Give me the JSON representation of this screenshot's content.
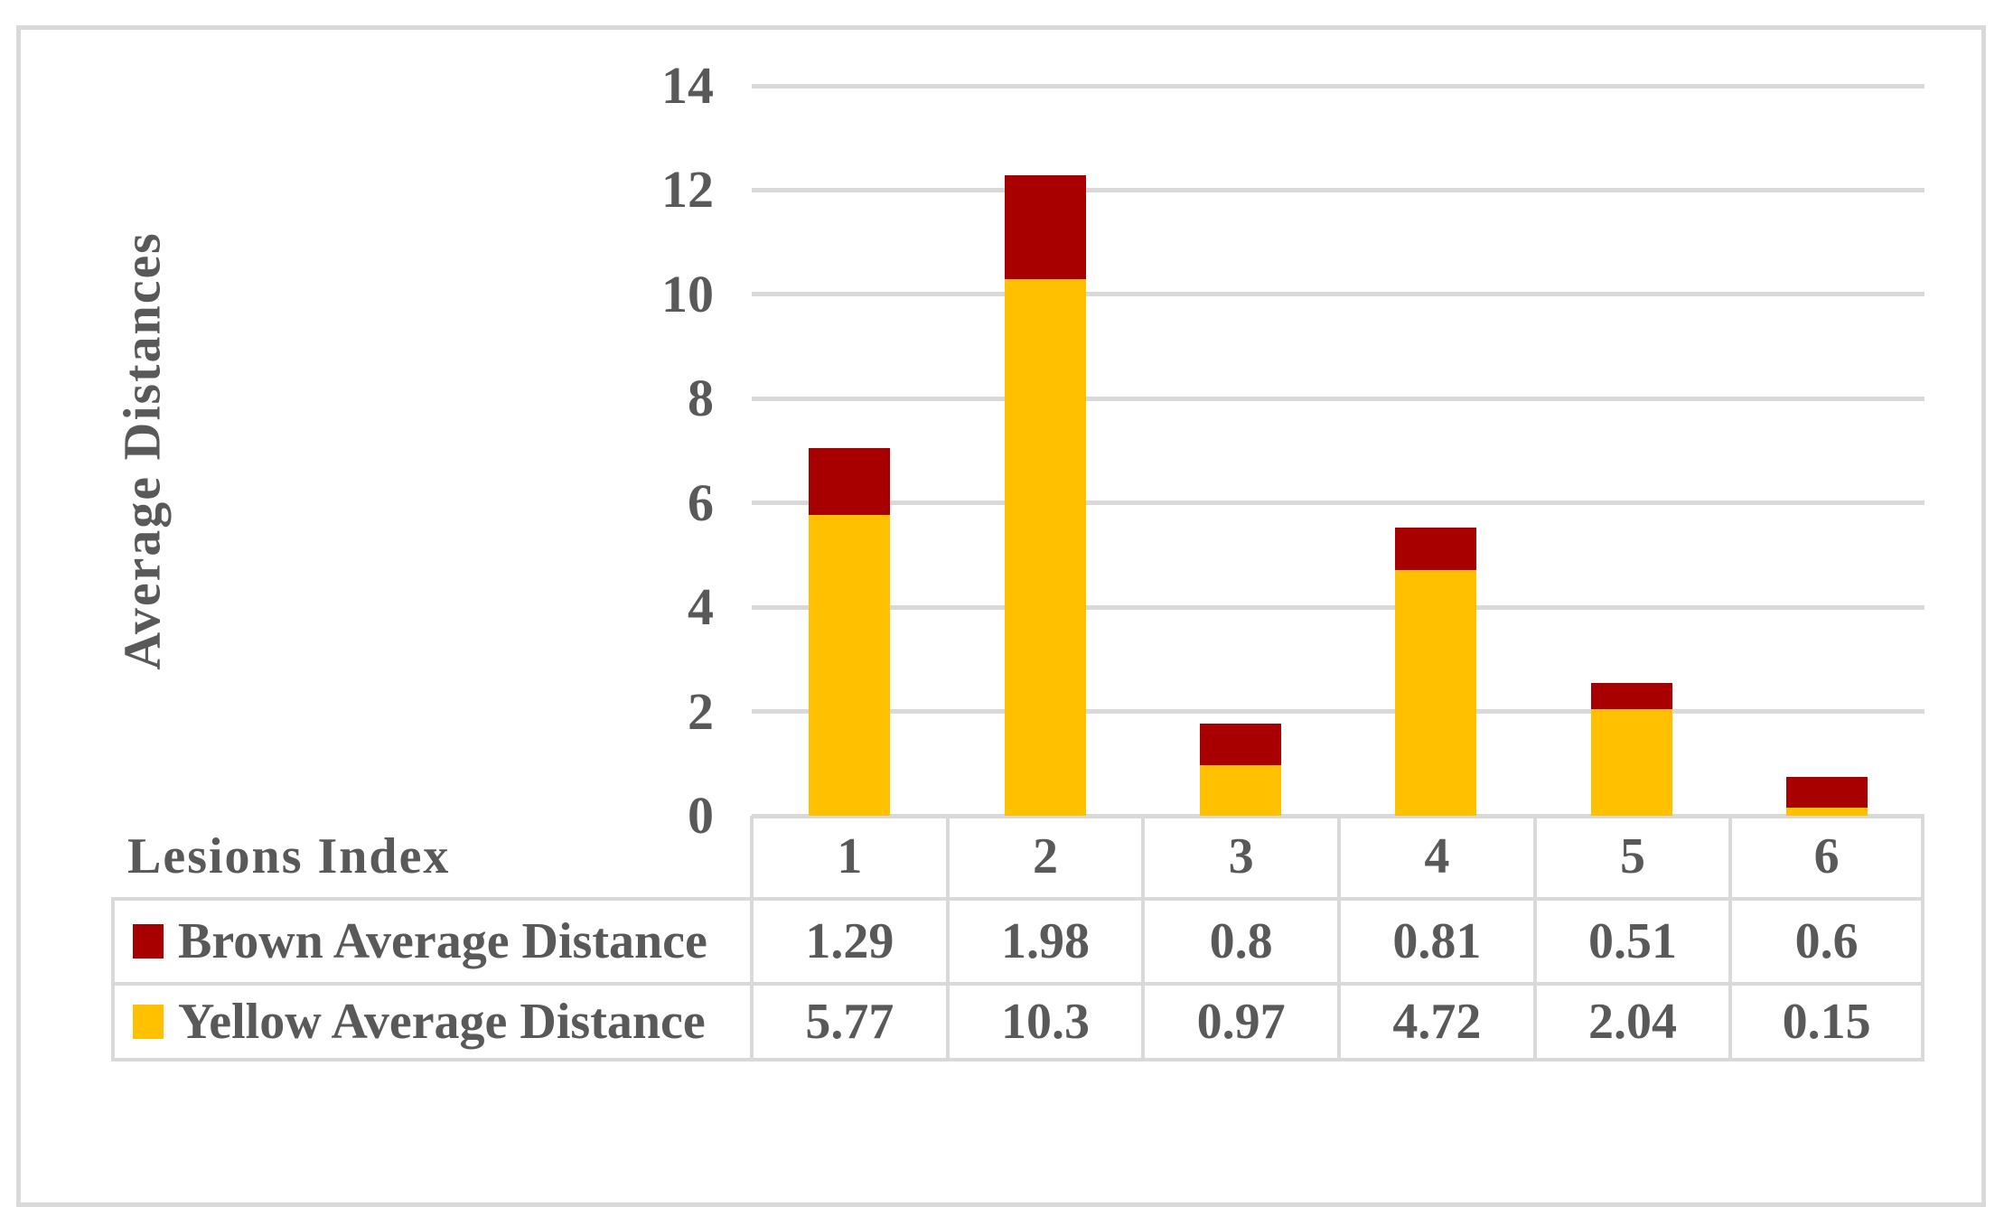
{
  "figure": {
    "background_color": "#ffffff",
    "frame_border_color": "#d9d9d9",
    "text_color": "#595959"
  },
  "chart_data": {
    "type": "bar",
    "stacked": true,
    "title": "",
    "xlabel": "Lesions Index",
    "ylabel": "Average Distances",
    "categories": [
      "1",
      "2",
      "3",
      "4",
      "5",
      "6"
    ],
    "series": [
      {
        "name": "Brown Average Distance",
        "color": "#a80000",
        "values": [
          1.29,
          1.98,
          0.8,
          0.81,
          0.51,
          0.6
        ]
      },
      {
        "name": "Yellow Average Distance",
        "color": "#ffc000",
        "values": [
          5.77,
          10.3,
          0.97,
          4.72,
          2.04,
          0.15
        ]
      }
    ],
    "stack_order_bottom_to_top": [
      "Yellow Average Distance",
      "Brown Average Distance"
    ],
    "ylim": [
      0,
      14
    ],
    "ytick_step": 2,
    "ytick_labels": [
      "0",
      "2",
      "4",
      "6",
      "8",
      "10",
      "12",
      "14"
    ],
    "grid": true,
    "gridline_color": "#d9d9d9",
    "legend_position": "data-table-left",
    "data_table_shown": true
  }
}
